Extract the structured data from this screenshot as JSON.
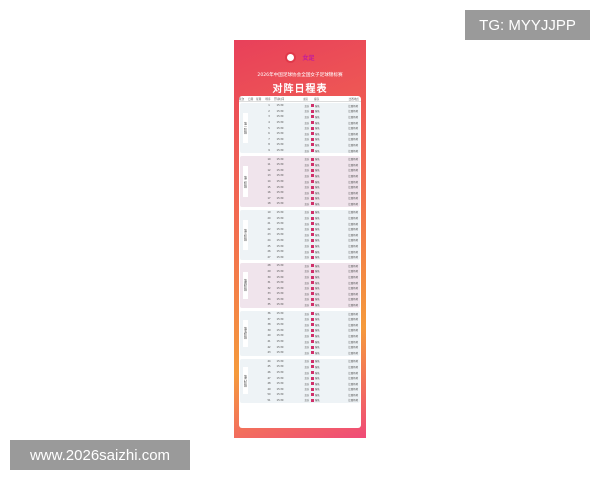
{
  "watermarks": {
    "top_right": "TG: MYYJJPP",
    "bottom_left": "www.2026saizhi.com"
  },
  "poster": {
    "logo_text": "女足",
    "subtitle": "2026年中国足球协会全国女子足球锦标赛",
    "title": "对阵日程表",
    "headers": [
      "轮次",
      "日期",
      "星期",
      "场序",
      "开球时间",
      "主队",
      "客队",
      "比赛地点"
    ],
    "footer": "",
    "colors": {
      "accent": "#e8405a",
      "vs": "#d0306a"
    },
    "sections": [
      {
        "label": "第一阶段",
        "tone": "b",
        "rows": 9
      },
      {
        "label": "第二阶段",
        "tone": "p",
        "rows": 9
      },
      {
        "label": "第三阶段",
        "tone": "b",
        "rows": 9
      },
      {
        "label": "第四阶段",
        "tone": "p",
        "rows": 8
      },
      {
        "label": "第五阶段",
        "tone": "b",
        "rows": 8
      },
      {
        "label": "第六阶段",
        "tone": "b",
        "rows": 8
      }
    ],
    "row_template": {
      "time": "15:30",
      "home": "主队",
      "away": "客队",
      "venue": "比赛场地"
    }
  }
}
